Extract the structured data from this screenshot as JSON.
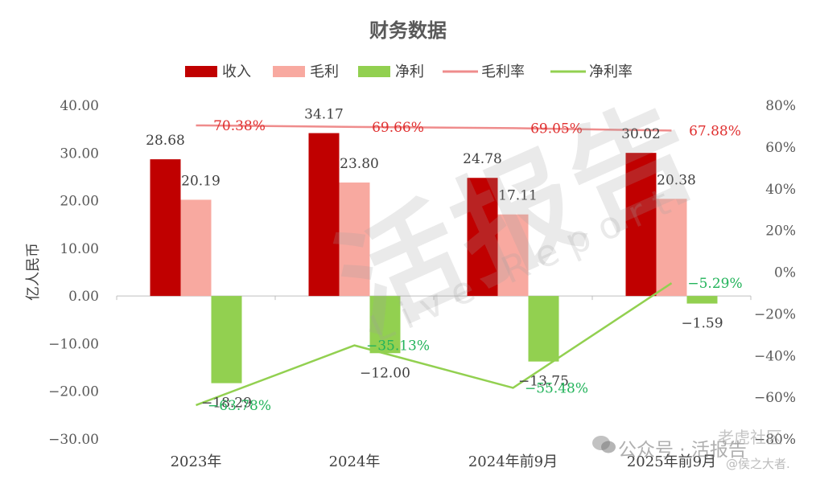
{
  "chart_data": {
    "type": "bar",
    "title": "财务数据",
    "ylabel": "亿人民币",
    "categories": [
      "2023年",
      "2024年",
      "2024年前9月",
      "2025年前9月"
    ],
    "ylim": [
      -30,
      40
    ],
    "yticks": [
      "40.00",
      "30.00",
      "20.00",
      "10.00",
      "0.00",
      "-10.00",
      "-20.00",
      "-30.00"
    ],
    "y2lim": [
      -80,
      80
    ],
    "y2ticks": [
      "80%",
      "60%",
      "40%",
      "20%",
      "0%",
      "-20%",
      "-40%",
      "-60%",
      "-80%"
    ],
    "legend_position": "top",
    "grid": false,
    "series": [
      {
        "name": "收入",
        "kind": "bar",
        "color": "#c00000",
        "values": [
          28.68,
          34.17,
          24.78,
          30.02
        ],
        "labels": [
          "28.68",
          "34.17",
          "24.78",
          "30.02"
        ]
      },
      {
        "name": "毛利",
        "kind": "bar",
        "color": "#f8a9a0",
        "values": [
          20.19,
          23.8,
          17.11,
          20.38
        ],
        "labels": [
          "20.19",
          "23.80",
          "17.11",
          "20.38"
        ]
      },
      {
        "name": "净利",
        "kind": "bar",
        "color": "#92d050",
        "values": [
          -18.29,
          -12.0,
          -13.75,
          -1.59
        ],
        "labels": [
          "-18.29",
          "-12.00",
          "-13.75",
          "-1.59"
        ]
      },
      {
        "name": "毛利率",
        "kind": "line",
        "axis": "right",
        "color": "#ef8c8c",
        "label_color": "#e03030",
        "values": [
          70.38,
          69.66,
          69.05,
          67.88
        ],
        "labels": [
          "70.38%",
          "69.66%",
          "69.05%",
          "67.88%"
        ]
      },
      {
        "name": "净利率",
        "kind": "line",
        "axis": "right",
        "color": "#92d050",
        "label_color": "#22b35a",
        "values": [
          -63.78,
          -35.13,
          -55.48,
          -5.29
        ],
        "labels": [
          "-63.78%",
          "-35.13%",
          "-55.48%",
          "-5.29%"
        ]
      }
    ]
  },
  "watermarks": {
    "brand": "活报告",
    "brand_en": "Live Report",
    "footer": "公众号 · 活报告",
    "corner_top": "老虎社区",
    "corner_bottom": "@侯之大者."
  },
  "colors": {
    "background": "#ffffff",
    "axis": "#bfbfbf",
    "text": "#404040"
  }
}
